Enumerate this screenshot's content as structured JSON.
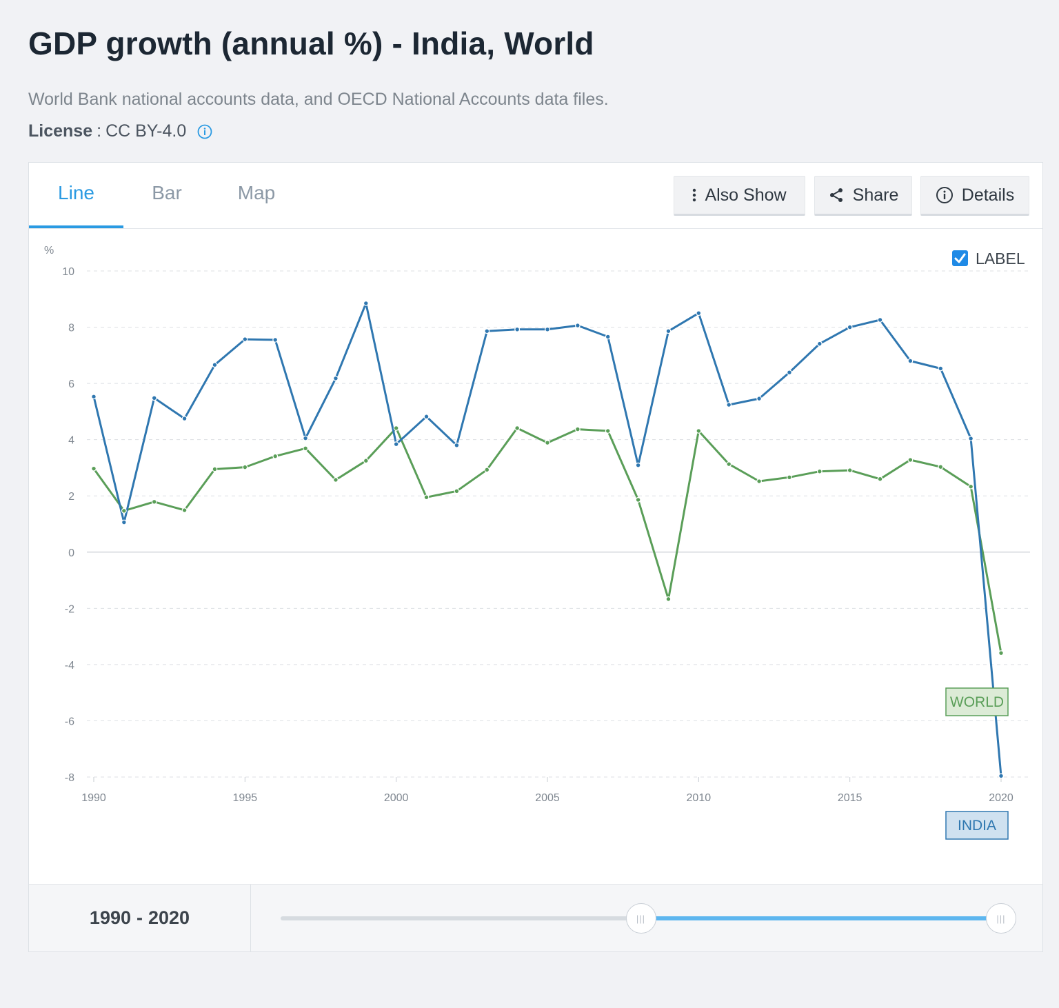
{
  "page": {
    "title": "GDP growth (annual %) - India, World",
    "subtitle": "World Bank national accounts data, and OECD National Accounts data files.",
    "license_label": "License",
    "license_sep": ":",
    "license_value": "CC BY-4.0"
  },
  "tabs": [
    {
      "label": "Line",
      "active": true
    },
    {
      "label": "Bar",
      "active": false
    },
    {
      "label": "Map",
      "active": false
    }
  ],
  "toolbar": {
    "also_show": "Also Show",
    "share": "Share",
    "details": "Details"
  },
  "label_toggle": {
    "text": "LABEL",
    "checked": true
  },
  "range": {
    "start": "1990",
    "sep": "-",
    "end": "2020",
    "slider_min_fraction": 0.5,
    "slider_max_fraction": 1.0
  },
  "colors": {
    "india": "#2f77b0",
    "world": "#5a9e58",
    "accent": "#2a9ae2"
  },
  "chart_data": {
    "type": "line",
    "ylabel": "%",
    "ylim": [
      -8,
      10
    ],
    "yticks": [
      10,
      8,
      6,
      4,
      2,
      0,
      -2,
      -4,
      -6,
      -8
    ],
    "xlim": [
      1990,
      2020
    ],
    "xticks": [
      1990,
      1995,
      2000,
      2005,
      2010,
      2015,
      2020
    ],
    "grid": true,
    "x": [
      1990,
      1991,
      1992,
      1993,
      1994,
      1995,
      1996,
      1997,
      1998,
      1999,
      2000,
      2001,
      2002,
      2003,
      2004,
      2005,
      2006,
      2007,
      2008,
      2009,
      2010,
      2011,
      2012,
      2013,
      2014,
      2015,
      2016,
      2017,
      2018,
      2019,
      2020
    ],
    "series": [
      {
        "name": "INDIA",
        "values": [
          5.53,
          1.06,
          5.48,
          4.75,
          6.66,
          7.57,
          7.55,
          4.05,
          6.18,
          8.85,
          3.84,
          4.82,
          3.8,
          7.86,
          7.92,
          7.92,
          8.06,
          7.66,
          3.09,
          7.86,
          8.5,
          5.24,
          5.46,
          6.39,
          7.41,
          8.0,
          8.26,
          6.8,
          6.53,
          4.04,
          -7.96
        ]
      },
      {
        "name": "WORLD",
        "values": [
          2.97,
          1.47,
          1.79,
          1.49,
          2.95,
          3.02,
          3.41,
          3.69,
          2.57,
          3.25,
          4.41,
          1.95,
          2.17,
          2.93,
          4.41,
          3.89,
          4.37,
          4.31,
          1.86,
          -1.67,
          4.31,
          3.13,
          2.52,
          2.66,
          2.87,
          2.91,
          2.6,
          3.28,
          3.03,
          2.33,
          -3.59
        ]
      }
    ]
  }
}
